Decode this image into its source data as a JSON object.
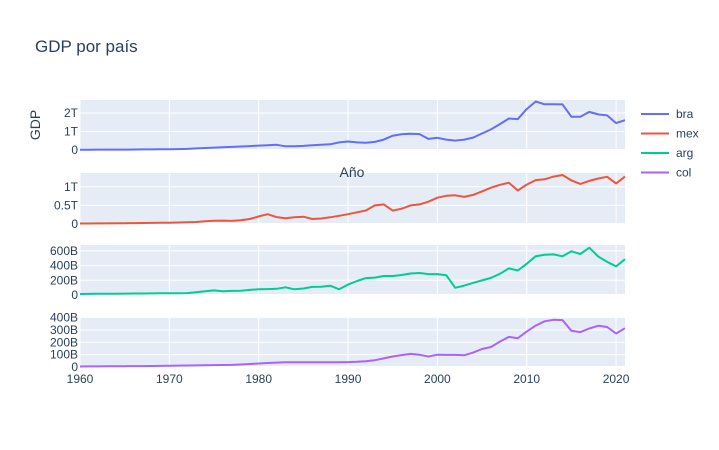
{
  "chart_data": {
    "type": "line",
    "title": "GDP por país",
    "xlabel": "Año",
    "ylabel": "GDP",
    "xlim": [
      1960,
      2021
    ],
    "x_ticks": [
      1960,
      1970,
      1980,
      1990,
      2000,
      2010,
      2020
    ],
    "legend_position": "top-right",
    "x": [
      1960,
      1961,
      1962,
      1963,
      1964,
      1965,
      1966,
      1967,
      1968,
      1969,
      1970,
      1971,
      1972,
      1973,
      1974,
      1975,
      1976,
      1977,
      1978,
      1979,
      1980,
      1981,
      1982,
      1983,
      1984,
      1985,
      1986,
      1987,
      1988,
      1989,
      1990,
      1991,
      1992,
      1993,
      1994,
      1995,
      1996,
      1997,
      1998,
      1999,
      2000,
      2001,
      2002,
      2003,
      2004,
      2005,
      2006,
      2007,
      2008,
      2009,
      2010,
      2011,
      2012,
      2013,
      2014,
      2015,
      2016,
      2017,
      2018,
      2019,
      2020,
      2021
    ],
    "series": [
      {
        "name": "bra",
        "color": "#636efa",
        "ylim": [
          0,
          2.7
        ],
        "ticks": [
          0,
          1,
          2
        ],
        "tick_labels": [
          "0",
          "1T",
          "2T"
        ],
        "values": [
          0.017,
          0.018,
          0.02,
          0.024,
          0.022,
          0.023,
          0.029,
          0.032,
          0.034,
          0.038,
          0.042,
          0.049,
          0.058,
          0.084,
          0.11,
          0.13,
          0.15,
          0.17,
          0.19,
          0.21,
          0.235,
          0.26,
          0.28,
          0.2,
          0.2,
          0.22,
          0.26,
          0.28,
          0.31,
          0.41,
          0.46,
          0.41,
          0.39,
          0.44,
          0.56,
          0.77,
          0.85,
          0.88,
          0.86,
          0.6,
          0.66,
          0.56,
          0.51,
          0.56,
          0.67,
          0.89,
          1.11,
          1.4,
          1.7,
          1.67,
          2.21,
          2.62,
          2.47,
          2.47,
          2.46,
          1.8,
          1.8,
          2.06,
          1.92,
          1.87,
          1.45,
          1.61
        ]
      },
      {
        "name": "mex",
        "color": "#ef553b",
        "ylim": [
          0,
          1.37
        ],
        "ticks": [
          0,
          0.5,
          1
        ],
        "tick_labels": [
          "0",
          "0.5T",
          "1T"
        ],
        "values": [
          0.013,
          0.014,
          0.015,
          0.017,
          0.02,
          0.022,
          0.024,
          0.026,
          0.029,
          0.032,
          0.035,
          0.039,
          0.045,
          0.055,
          0.072,
          0.088,
          0.09,
          0.082,
          0.102,
          0.134,
          0.205,
          0.263,
          0.185,
          0.156,
          0.184,
          0.195,
          0.134,
          0.147,
          0.181,
          0.221,
          0.262,
          0.314,
          0.363,
          0.5,
          0.527,
          0.36,
          0.411,
          0.5,
          0.526,
          0.6,
          0.707,
          0.757,
          0.772,
          0.729,
          0.782,
          0.877,
          0.975,
          1.053,
          1.11,
          0.9,
          1.058,
          1.18,
          1.2,
          1.274,
          1.315,
          1.172,
          1.078,
          1.159,
          1.222,
          1.269,
          1.09,
          1.273
        ]
      },
      {
        "name": "arg",
        "color": "#00cc96",
        "ylim": [
          0,
          680
        ],
        "ticks": [
          0,
          200,
          400,
          600
        ],
        "tick_labels": [
          "0",
          "200B",
          "400B",
          "600B"
        ],
        "values": [
          14,
          15,
          16,
          17,
          18,
          19,
          20,
          21,
          22,
          23,
          24,
          25,
          26,
          38,
          52,
          62,
          52,
          56,
          58,
          69,
          77,
          80,
          85,
          105,
          78,
          88,
          110,
          112,
          126,
          77,
          141,
          190,
          230,
          237,
          258,
          258,
          272,
          293,
          299,
          284,
          284,
          269,
          98,
          128,
          165,
          199,
          232,
          288,
          362,
          333,
          424,
          528,
          547,
          552,
          527,
          595,
          557,
          643,
          524,
          451,
          389,
          487
        ]
      },
      {
        "name": "col",
        "color": "#ab63fa",
        "ylim": [
          0,
          405
        ],
        "ticks": [
          0,
          100,
          200,
          300,
          400
        ],
        "tick_labels": [
          "0",
          "100B",
          "200B",
          "300B",
          "400B"
        ],
        "values": [
          4,
          4.5,
          5,
          5.5,
          6,
          6.5,
          7,
          7.5,
          8,
          9,
          10,
          11,
          12,
          13,
          14,
          15,
          16,
          17,
          20,
          24,
          28,
          32,
          36,
          38,
          38,
          38,
          38,
          38,
          38,
          38,
          40,
          42,
          46,
          55,
          70,
          85,
          96,
          106,
          99,
          85,
          100,
          98,
          98,
          95,
          117,
          146,
          162,
          206,
          244,
          233,
          287,
          335,
          370,
          382,
          380,
          293,
          283,
          312,
          334,
          324,
          271,
          314
        ]
      }
    ]
  }
}
